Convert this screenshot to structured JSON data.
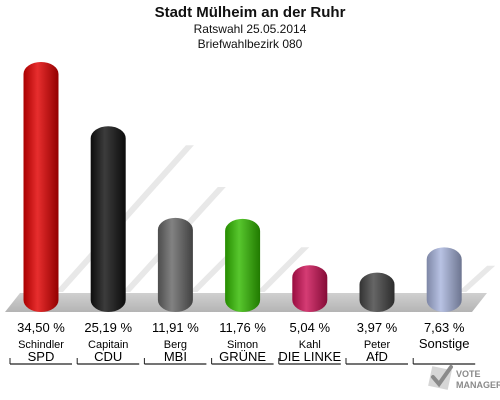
{
  "chart_data": {
    "type": "bar",
    "title": "Stadt Mülheim an der Ruhr",
    "subtitle1": "Ratswahl 25.05.2014",
    "subtitle2": "Briefwahlbezirk 080",
    "ylim": [
      0,
      40
    ],
    "grid": false,
    "categories": [
      "SPD",
      "CDU",
      "MBI",
      "GRÜNE",
      "DIE LINKE",
      "AfD",
      "Sonstige"
    ],
    "candidates": [
      "Schindler",
      "Capitain",
      "Berg",
      "Simon",
      "Kahl",
      "Peter",
      ""
    ],
    "values": [
      34.5,
      25.19,
      11.91,
      11.76,
      5.04,
      3.97,
      7.63
    ],
    "value_labels": [
      "34,50 %",
      "25,19 %",
      "11,91 %",
      "11,76 %",
      "5,04 %",
      "3,97 %",
      "7,63 %"
    ],
    "colors": [
      "#e20000",
      "#111111",
      "#666666",
      "#33bb00",
      "#cc1155",
      "#444444",
      "#a8b4dd"
    ]
  },
  "watermark": {
    "line1": "VOTE",
    "line2": "MANAGER",
    "icon": "ballot-check-icon"
  }
}
